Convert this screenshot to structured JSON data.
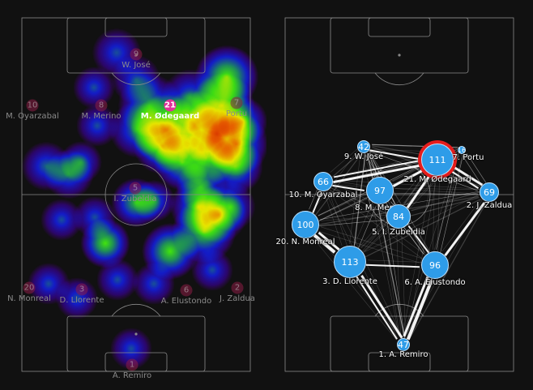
{
  "heatmap": {
    "highlighted_player": "21",
    "players": [
      {
        "number": "9",
        "name": "W. José"
      },
      {
        "number": "21",
        "name": "M. Ødegaard"
      },
      {
        "number": "10",
        "name": "M. Oyarzabal"
      },
      {
        "number": "8",
        "name": "M. Merino"
      },
      {
        "number": "7",
        "name": "Portu"
      },
      {
        "number": "5",
        "name": "I. Zubeldia"
      },
      {
        "number": "20",
        "name": "N. Monreal"
      },
      {
        "number": "3",
        "name": "D. Llorente"
      },
      {
        "number": "6",
        "name": "A. Elustondo"
      },
      {
        "number": "2",
        "name": "J. Zaldua"
      },
      {
        "number": "1",
        "name": "A. Remiro"
      }
    ]
  },
  "pass_network": {
    "selected_player": "21",
    "node_color": "#2e9ce8",
    "selected_ring_color": "#e51d1d",
    "nodes": [
      {
        "label": "9. W. José",
        "value": "42"
      },
      {
        "label": "21. M. Ødegaard",
        "value": "111"
      },
      {
        "label": "7. Portu",
        "value": "16"
      },
      {
        "label": "10. M. Oyarzabal",
        "value": "66"
      },
      {
        "label": "8. M. Merino",
        "value": "97"
      },
      {
        "label": "2. J. Zaldua",
        "value": "69"
      },
      {
        "label": "5. I. Zubeldia",
        "value": "84"
      },
      {
        "label": "20. N. Monreal",
        "value": "100"
      },
      {
        "label": "3. D. Llorente",
        "value": "113"
      },
      {
        "label": "6. A. Elustondo",
        "value": "96"
      },
      {
        "label": "1. A. Remiro",
        "value": "47"
      }
    ]
  }
}
